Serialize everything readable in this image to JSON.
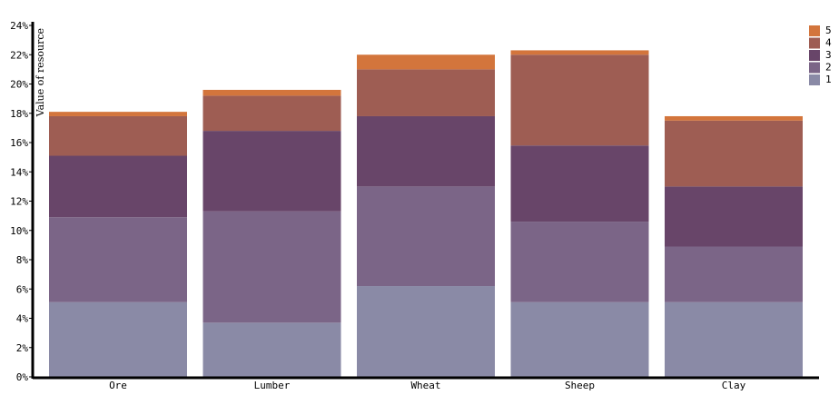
{
  "chart_data": {
    "type": "bar",
    "stacked": true,
    "title": "",
    "xlabel": "",
    "ylabel": "Value of resource",
    "ylim": [
      0,
      24
    ],
    "y_tick_format": "percent",
    "y_ticks": [
      0,
      2,
      4,
      6,
      8,
      10,
      12,
      14,
      16,
      18,
      20,
      22,
      24
    ],
    "categories": [
      "Ore",
      "Lumber",
      "Wheat",
      "Sheep",
      "Clay"
    ],
    "legend_position": "top-right",
    "grid": false,
    "series": [
      {
        "name": "1",
        "color": "#8a8aa6",
        "values": [
          5.1,
          3.7,
          6.2,
          5.1,
          5.1
        ]
      },
      {
        "name": "2",
        "color": "#7b6587",
        "values": [
          5.8,
          7.6,
          6.8,
          5.5,
          3.8
        ]
      },
      {
        "name": "3",
        "color": "#684569",
        "values": [
          4.2,
          5.5,
          4.8,
          5.2,
          4.1
        ]
      },
      {
        "name": "4",
        "color": "#9e5d53",
        "values": [
          2.7,
          2.4,
          3.2,
          6.2,
          4.5
        ]
      },
      {
        "name": "5",
        "color": "#d3753c",
        "values": [
          0.3,
          0.4,
          1.0,
          0.3,
          0.3
        ]
      }
    ]
  }
}
